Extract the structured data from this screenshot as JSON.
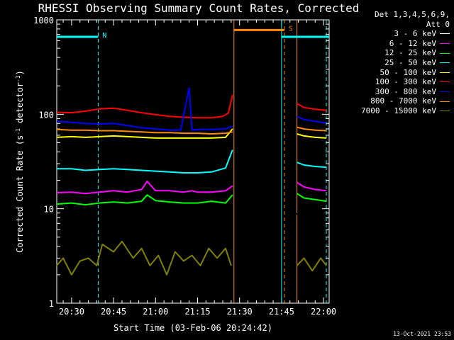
{
  "chart_data": {
    "type": "line",
    "title": "RHESSI Observing Summary Count Rates, Corrected",
    "xlabel": "Start Time (03-Feb-06 20:24:42)",
    "ylabel": "Corrected Count Rate (s⁻¹ detector⁻¹)",
    "ylabel_tex": [
      "Corrected Count Rate (s",
      "-1",
      " detector",
      "-1",
      ")"
    ],
    "x_ticks": [
      "20:30",
      "20:45",
      "21:00",
      "21:15",
      "21:30",
      "21:45",
      "22:00"
    ],
    "x_tick_minutes": [
      30,
      45,
      60,
      75,
      90,
      105,
      120
    ],
    "x_range_minutes": [
      24.7,
      122
    ],
    "y_scale": "log",
    "y_ticks": [
      "1",
      "10",
      "100",
      "1000"
    ],
    "ylim": [
      1,
      1000
    ],
    "legend_header": [
      "Det 1,3,4,5,6,9,",
      "Att 0"
    ],
    "gaps": [
      [
        87.5,
        110.5
      ]
    ],
    "series": [
      {
        "name": "3 - 6 keV",
        "color": "#000000",
        "points": [
          [
            24.7,
            2.5
          ],
          [
            28,
            2.7
          ],
          [
            31,
            2.2
          ],
          [
            33,
            3.6
          ],
          [
            34,
            2.4
          ],
          [
            36,
            3
          ],
          [
            40,
            2.3
          ],
          [
            44,
            2.6
          ],
          [
            48,
            2.8
          ],
          [
            52,
            3.2
          ],
          [
            55,
            6.5
          ],
          [
            57,
            12
          ],
          [
            58,
            8
          ],
          [
            60,
            3.5
          ],
          [
            62,
            2.4
          ],
          [
            64,
            1.5
          ],
          [
            66,
            1.2
          ],
          [
            68,
            2.8
          ],
          [
            70,
            2.2
          ],
          [
            72,
            4.2
          ],
          [
            73,
            2.3
          ],
          [
            75,
            8
          ],
          [
            76,
            5
          ],
          [
            78,
            3
          ],
          [
            80,
            2.4
          ],
          [
            82,
            2.6
          ],
          [
            84,
            2.6
          ],
          [
            86,
            2.5
          ],
          [
            87,
            2.5
          ],
          [
            110.5,
            9
          ],
          [
            113,
            6.5
          ],
          [
            115,
            5.5
          ],
          [
            117,
            7.5
          ],
          [
            120,
            4.5
          ],
          [
            121,
            4.2
          ]
        ]
      },
      {
        "name": "6 - 12 keV",
        "color": "#ff00ff",
        "points": [
          [
            24.7,
            14.8
          ],
          [
            30,
            15
          ],
          [
            35,
            14.5
          ],
          [
            40,
            15
          ],
          [
            45,
            15.5
          ],
          [
            50,
            15
          ],
          [
            55,
            16
          ],
          [
            57,
            19.5
          ],
          [
            60,
            15.5
          ],
          [
            65,
            15.5
          ],
          [
            70,
            15
          ],
          [
            73,
            15.5
          ],
          [
            75,
            15
          ],
          [
            80,
            15
          ],
          [
            85,
            15.5
          ],
          [
            87.5,
            17.5
          ],
          [
            110.5,
            19
          ],
          [
            113,
            17
          ],
          [
            117,
            16
          ],
          [
            121,
            15.5
          ]
        ]
      },
      {
        "name": "12 - 25 keV",
        "color": "#00ff00",
        "points": [
          [
            24.7,
            11.2
          ],
          [
            30,
            11.5
          ],
          [
            35,
            11
          ],
          [
            40,
            11.5
          ],
          [
            45,
            11.8
          ],
          [
            50,
            11.5
          ],
          [
            55,
            12
          ],
          [
            57,
            14
          ],
          [
            60,
            12.2
          ],
          [
            65,
            11.8
          ],
          [
            70,
            11.5
          ],
          [
            75,
            11.5
          ],
          [
            80,
            12
          ],
          [
            85,
            11.5
          ],
          [
            87.5,
            14
          ],
          [
            110.5,
            14.5
          ],
          [
            113,
            13
          ],
          [
            117,
            12.5
          ],
          [
            121,
            12
          ]
        ]
      },
      {
        "name": "25 - 50 keV",
        "color": "#00ffff",
        "points": [
          [
            24.7,
            26.5
          ],
          [
            30,
            26.5
          ],
          [
            35,
            25.5
          ],
          [
            40,
            26
          ],
          [
            45,
            26.5
          ],
          [
            50,
            26
          ],
          [
            55,
            25.5
          ],
          [
            60,
            25
          ],
          [
            65,
            24.5
          ],
          [
            70,
            24
          ],
          [
            75,
            24
          ],
          [
            80,
            24.5
          ],
          [
            85,
            27
          ],
          [
            87.5,
            42
          ],
          [
            110.5,
            31
          ],
          [
            113,
            29
          ],
          [
            117,
            28
          ],
          [
            121,
            27.5
          ]
        ]
      },
      {
        "name": "50 - 100 keV",
        "color": "#ffff00",
        "points": [
          [
            24.7,
            57
          ],
          [
            30,
            58
          ],
          [
            35,
            57
          ],
          [
            40,
            58
          ],
          [
            45,
            59
          ],
          [
            50,
            58
          ],
          [
            55,
            57
          ],
          [
            60,
            56
          ],
          [
            65,
            56
          ],
          [
            70,
            56
          ],
          [
            75,
            56
          ],
          [
            80,
            56
          ],
          [
            85,
            57
          ],
          [
            87.5,
            70
          ],
          [
            110.5,
            62
          ],
          [
            113,
            59
          ],
          [
            117,
            57
          ],
          [
            121,
            56
          ]
        ]
      },
      {
        "name": "100 - 300 keV",
        "color": "#ff0000",
        "points": [
          [
            24.7,
            105
          ],
          [
            30,
            104
          ],
          [
            35,
            108
          ],
          [
            40,
            114
          ],
          [
            45,
            116
          ],
          [
            50,
            110
          ],
          [
            55,
            104
          ],
          [
            60,
            99
          ],
          [
            65,
            95
          ],
          [
            70,
            93
          ],
          [
            75,
            92
          ],
          [
            80,
            92
          ],
          [
            84,
            95
          ],
          [
            86,
            103
          ],
          [
            87.5,
            160
          ],
          [
            110.5,
            130
          ],
          [
            113,
            118
          ],
          [
            117,
            113
          ],
          [
            121,
            110
          ]
        ]
      },
      {
        "name": "300 - 800 keV",
        "color": "#0000ff",
        "points": [
          [
            24.7,
            84
          ],
          [
            30,
            82
          ],
          [
            35,
            80
          ],
          [
            40,
            79
          ],
          [
            45,
            80
          ],
          [
            50,
            76
          ],
          [
            55,
            72
          ],
          [
            60,
            70
          ],
          [
            65,
            68
          ],
          [
            69,
            68
          ],
          [
            72,
            190
          ],
          [
            73,
            68
          ],
          [
            75,
            69
          ],
          [
            80,
            69
          ],
          [
            85,
            70
          ],
          [
            87.5,
            75
          ],
          [
            110.5,
            95
          ],
          [
            113,
            88
          ],
          [
            117,
            84
          ],
          [
            121,
            81
          ]
        ]
      },
      {
        "name": "800 - 7000 keV",
        "color": "#ff8c00",
        "points": [
          [
            24.7,
            69
          ],
          [
            30,
            68
          ],
          [
            35,
            68
          ],
          [
            40,
            67
          ],
          [
            45,
            67
          ],
          [
            50,
            66
          ],
          [
            55,
            65
          ],
          [
            60,
            64
          ],
          [
            65,
            64
          ],
          [
            70,
            63
          ],
          [
            75,
            63
          ],
          [
            80,
            62
          ],
          [
            85,
            63
          ],
          [
            87.5,
            65
          ],
          [
            110.5,
            73
          ],
          [
            113,
            70
          ],
          [
            117,
            68
          ],
          [
            121,
            67
          ]
        ]
      },
      {
        "name": "7000 - 15000 keV",
        "color": "#808000",
        "points": [
          [
            24.7,
            2.5
          ],
          [
            27,
            3
          ],
          [
            30,
            2
          ],
          [
            33,
            2.8
          ],
          [
            36,
            3
          ],
          [
            39,
            2.5
          ],
          [
            41,
            4.2
          ],
          [
            45,
            3.5
          ],
          [
            48,
            4.5
          ],
          [
            52,
            3
          ],
          [
            55,
            3.8
          ],
          [
            58,
            2.5
          ],
          [
            61,
            3.2
          ],
          [
            64,
            2
          ],
          [
            67,
            3.5
          ],
          [
            70,
            2.8
          ],
          [
            73,
            3.2
          ],
          [
            76,
            2.5
          ],
          [
            79,
            3.8
          ],
          [
            82,
            3
          ],
          [
            85,
            3.8
          ],
          [
            87,
            2.5
          ],
          [
            110.5,
            2.5
          ],
          [
            113,
            3
          ],
          [
            116,
            2.2
          ],
          [
            119,
            3
          ],
          [
            121,
            2.5
          ]
        ]
      }
    ],
    "bars": [
      {
        "label": "N",
        "color": "#00ffff",
        "x_range": [
          24.7,
          39.5
        ],
        "y": 660
      },
      {
        "label": "",
        "color": "#00ffff",
        "x_range": [
          105,
          122
        ],
        "y": 660
      },
      {
        "label": "S",
        "color": "#ff8c00",
        "x_range": [
          88,
          106
        ],
        "y": 780
      }
    ],
    "vlines": [
      {
        "x": 39.5,
        "color": "#00ffff",
        "style": "dashed"
      },
      {
        "x": 121,
        "color": "#00ffff",
        "style": "dashed"
      },
      {
        "x": 105,
        "color": "#00ffff",
        "style": "solid"
      },
      {
        "x": 88,
        "color": "#ff8c00",
        "style": "solid"
      },
      {
        "x": 106,
        "color": "#ff8c00",
        "style": "dashed"
      },
      {
        "x": 110.5,
        "color": "#ff8c00",
        "style": "solid"
      }
    ]
  },
  "footer": "13-Oct-2021 23:53"
}
